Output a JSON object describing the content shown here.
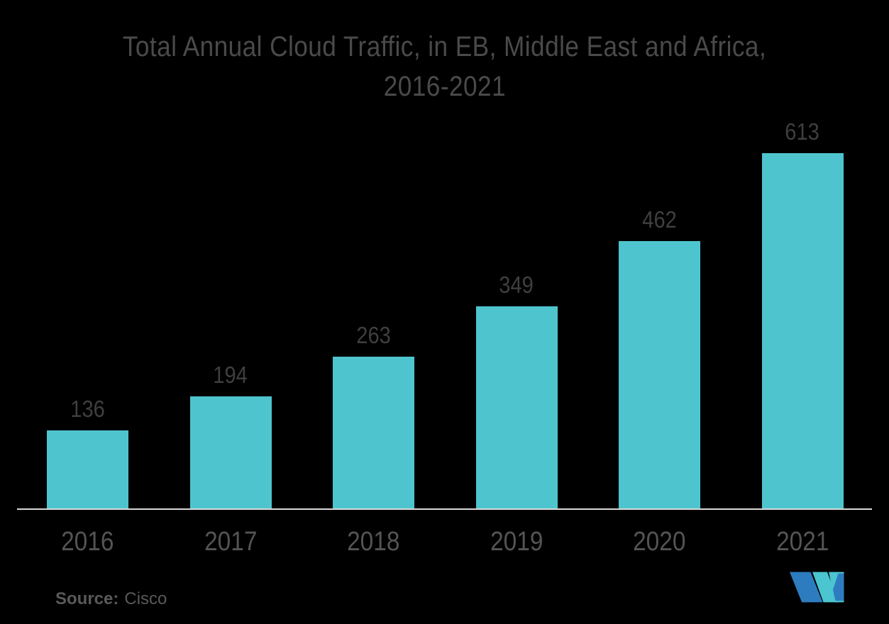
{
  "background": "#000000",
  "chart_data": {
    "type": "bar",
    "title": "Total Annual Cloud Traffic, in EB, Middle East and Africa, 2016-2021",
    "title_lines": [
      "Total Annual Cloud Traffic, in EB, Middle East and Africa,",
      "2016-2021"
    ],
    "categories": [
      "2016",
      "2017",
      "2018",
      "2019",
      "2020",
      "2021"
    ],
    "values": [
      136,
      194,
      263,
      349,
      462,
      613
    ],
    "unit": "EB",
    "xlabel": "",
    "ylabel": "",
    "ylim": [
      0,
      660
    ],
    "grid": false,
    "legend": false,
    "data_labels_shown": true,
    "bar_color": "#4EC5CE",
    "value_label_color": "#3f3f3f",
    "category_label_color": "#545454",
    "axis_line_color": "#d8d8d8",
    "title_color": "#4a4a4a"
  },
  "source": {
    "prefix": "Source:",
    "name": "Cisco"
  },
  "logo": {
    "name": "mordor-intelligence-logo",
    "teal": "#4BC5CF",
    "blue": "#2E7CC0"
  }
}
